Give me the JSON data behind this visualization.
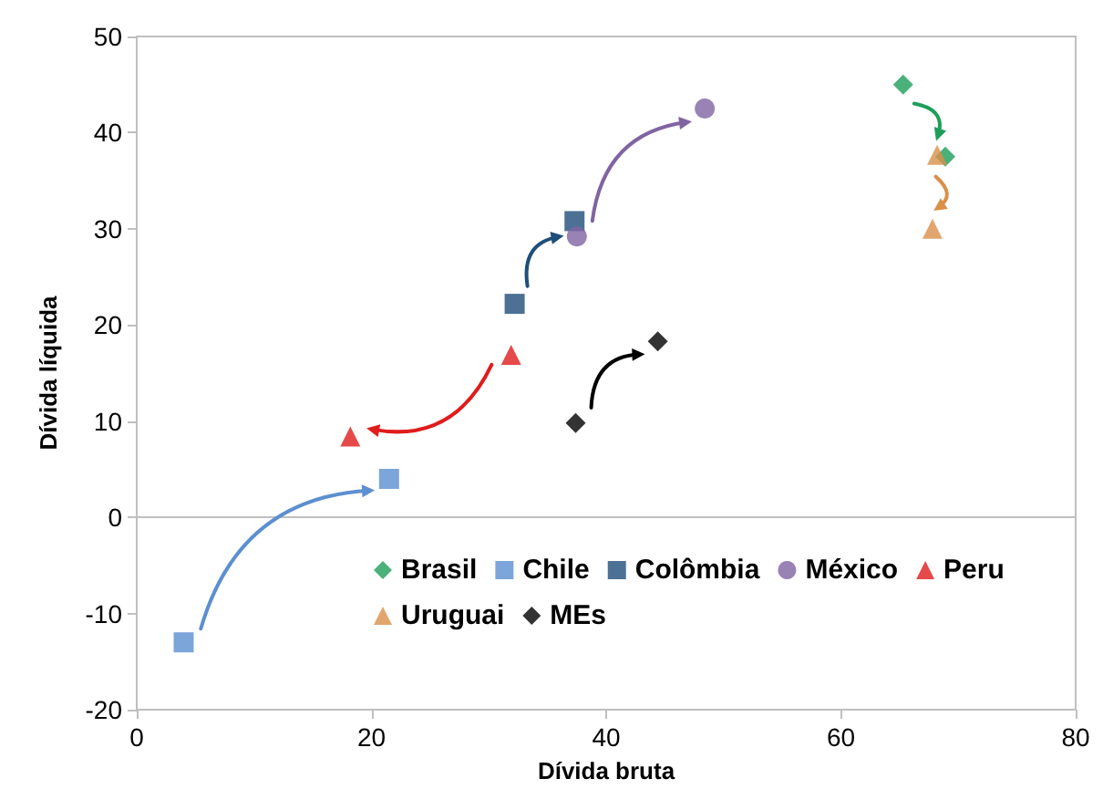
{
  "chart_data": {
    "type": "scatter",
    "xlabel": "Dívida bruta",
    "ylabel": "Dívida líquida",
    "xlim": [
      0,
      80
    ],
    "xticks": [
      0,
      20,
      40,
      60,
      80
    ],
    "ylim": [
      -20,
      50
    ],
    "yticks": [
      -20,
      -10,
      0,
      10,
      20,
      30,
      40,
      50
    ],
    "grid": false,
    "legend": "bottom",
    "ref_lines": [
      {
        "axis": "y",
        "value": 0,
        "color": "#bfbfbf"
      }
    ],
    "series": [
      {
        "name": "Brasil",
        "color": "#1e9e5a",
        "marker": "diamond",
        "x": [
          65.3,
          68.9
        ],
        "values": [
          45,
          37.5
        ]
      },
      {
        "name": "Chile",
        "color": "#5b8fd0",
        "marker": "square",
        "x": [
          4,
          21.5
        ],
        "values": [
          -13,
          4
        ]
      },
      {
        "name": "Colômbia",
        "color": "#1f4e79",
        "marker": "square",
        "x": [
          32.2,
          37.3
        ],
        "values": [
          22.2,
          30.8
        ]
      },
      {
        "name": "México",
        "color": "#8064a2",
        "marker": "circle",
        "x": [
          37.5,
          48.4
        ],
        "values": [
          29.2,
          42.5
        ]
      },
      {
        "name": "Peru",
        "color": "#e01c1c",
        "marker": "triangle",
        "x": [
          31.9,
          18.2
        ],
        "values": [
          16.9,
          8.4
        ]
      },
      {
        "name": "Uruguai",
        "color": "#d9904a",
        "marker": "triangle",
        "x": [
          68.2,
          67.8
        ],
        "values": [
          37.7,
          30
        ]
      },
      {
        "name": "MEs",
        "color": "#000000",
        "marker": "diamond",
        "x": [
          37.4,
          44.4
        ],
        "values": [
          9.8,
          18.3
        ]
      }
    ]
  }
}
